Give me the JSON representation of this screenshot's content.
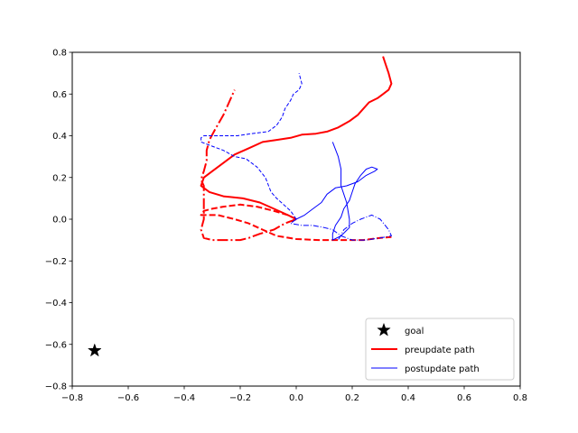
{
  "chart_data": {
    "type": "line",
    "title": "",
    "xlabel": "",
    "ylabel": "",
    "xlim": [
      -0.8,
      0.8
    ],
    "ylim": [
      -0.8,
      0.8
    ],
    "xticks": [
      -0.8,
      -0.6,
      -0.4,
      -0.2,
      0.0,
      0.2,
      0.4,
      0.6,
      0.8
    ],
    "yticks": [
      -0.8,
      -0.6,
      -0.4,
      -0.2,
      0.0,
      0.2,
      0.4,
      0.6,
      0.8
    ],
    "xtick_labels": [
      "−0.8",
      "−0.6",
      "−0.4",
      "−0.2",
      "0.0",
      "0.2",
      "0.4",
      "0.6",
      "0.8"
    ],
    "ytick_labels": [
      "−0.8",
      "−0.6",
      "−0.4",
      "−0.2",
      "0.0",
      "0.2",
      "0.4",
      "0.6",
      "0.8"
    ],
    "grid": false,
    "legend_position": "lower-right",
    "goal": {
      "label": "goal",
      "x": -0.72,
      "y": -0.63,
      "color": "#000000",
      "marker": "star"
    },
    "legend": [
      {
        "label": "goal",
        "kind": "star",
        "color": "#000000"
      },
      {
        "label": "preupdate path",
        "kind": "line",
        "color": "#ff0000",
        "width": 2
      },
      {
        "label": "postupdate path",
        "kind": "line",
        "color": "#0000ff",
        "width": 1
      }
    ],
    "series": [
      {
        "group": "preupdate",
        "style": "solid",
        "color": "#ff0000",
        "width": 2,
        "points": [
          [
            0.0,
            0.0
          ],
          [
            -0.03,
            0.02
          ],
          [
            -0.08,
            0.05
          ],
          [
            -0.13,
            0.08
          ],
          [
            -0.19,
            0.1
          ],
          [
            -0.26,
            0.11
          ],
          [
            -0.31,
            0.13
          ],
          [
            -0.34,
            0.16
          ],
          [
            -0.33,
            0.2
          ],
          [
            -0.3,
            0.23
          ],
          [
            -0.26,
            0.27
          ],
          [
            -0.22,
            0.31
          ],
          [
            -0.17,
            0.34
          ],
          [
            -0.12,
            0.37
          ],
          [
            -0.07,
            0.38
          ],
          [
            -0.02,
            0.39
          ],
          [
            0.02,
            0.405
          ],
          [
            0.07,
            0.41
          ],
          [
            0.11,
            0.42
          ],
          [
            0.15,
            0.44
          ],
          [
            0.19,
            0.47
          ],
          [
            0.22,
            0.5
          ],
          [
            0.24,
            0.53
          ],
          [
            0.26,
            0.56
          ],
          [
            0.29,
            0.58
          ],
          [
            0.31,
            0.6
          ],
          [
            0.33,
            0.62
          ],
          [
            0.34,
            0.65
          ],
          [
            0.33,
            0.7
          ],
          [
            0.32,
            0.74
          ],
          [
            0.31,
            0.78
          ]
        ]
      },
      {
        "group": "preupdate",
        "style": "dashed",
        "color": "#ff0000",
        "width": 2,
        "points": [
          [
            0.0,
            0.0
          ],
          [
            -0.03,
            0.02
          ],
          [
            -0.08,
            0.04
          ],
          [
            -0.14,
            0.06
          ],
          [
            -0.2,
            0.07
          ],
          [
            -0.26,
            0.06
          ],
          [
            -0.3,
            0.05
          ],
          [
            -0.33,
            0.04
          ],
          [
            -0.34,
            0.02
          ],
          [
            -0.32,
            0.02
          ],
          [
            -0.28,
            0.02
          ],
          [
            -0.22,
            0.0
          ],
          [
            -0.17,
            -0.02
          ],
          [
            -0.12,
            -0.05
          ],
          [
            -0.07,
            -0.08
          ],
          [
            0.0,
            -0.095
          ],
          [
            0.08,
            -0.1
          ],
          [
            0.16,
            -0.1
          ],
          [
            0.24,
            -0.1
          ],
          [
            0.3,
            -0.09
          ],
          [
            0.34,
            -0.085
          ]
        ]
      },
      {
        "group": "preupdate",
        "style": "dashdot",
        "color": "#ff0000",
        "width": 2,
        "points": [
          [
            0.0,
            0.0
          ],
          [
            -0.04,
            -0.02
          ],
          [
            -0.08,
            -0.05
          ],
          [
            -0.13,
            -0.07
          ],
          [
            -0.17,
            -0.09
          ],
          [
            -0.2,
            -0.1
          ],
          [
            -0.26,
            -0.1
          ],
          [
            -0.3,
            -0.1
          ],
          [
            -0.33,
            -0.09
          ],
          [
            -0.34,
            -0.05
          ],
          [
            -0.33,
            0.0
          ],
          [
            -0.33,
            0.05
          ],
          [
            -0.33,
            0.1
          ],
          [
            -0.33,
            0.16
          ],
          [
            -0.34,
            0.19
          ],
          [
            -0.33,
            0.23
          ],
          [
            -0.32,
            0.28
          ],
          [
            -0.32,
            0.33
          ],
          [
            -0.31,
            0.38
          ],
          [
            -0.29,
            0.43
          ],
          [
            -0.26,
            0.5
          ],
          [
            -0.24,
            0.56
          ],
          [
            -0.22,
            0.62
          ]
        ]
      },
      {
        "group": "postupdate",
        "style": "solid",
        "color": "#0000ff",
        "width": 1,
        "points": [
          [
            0.0,
            0.0
          ],
          [
            0.03,
            0.02
          ],
          [
            0.06,
            0.05
          ],
          [
            0.09,
            0.08
          ],
          [
            0.11,
            0.12
          ],
          [
            0.14,
            0.15
          ],
          [
            0.18,
            0.16
          ],
          [
            0.22,
            0.18
          ],
          [
            0.25,
            0.21
          ],
          [
            0.28,
            0.23
          ],
          [
            0.29,
            0.24
          ],
          [
            0.27,
            0.25
          ],
          [
            0.25,
            0.24
          ],
          [
            0.23,
            0.21
          ],
          [
            0.21,
            0.17
          ],
          [
            0.2,
            0.13
          ],
          [
            0.19,
            0.09
          ],
          [
            0.17,
            0.05
          ],
          [
            0.16,
            0.01
          ],
          [
            0.14,
            -0.03
          ],
          [
            0.13,
            -0.07
          ],
          [
            0.13,
            -0.1
          ],
          [
            0.16,
            -0.08
          ],
          [
            0.19,
            -0.04
          ],
          [
            0.19,
            0.0
          ],
          [
            0.18,
            0.08
          ],
          [
            0.16,
            0.16
          ],
          [
            0.16,
            0.2
          ],
          [
            0.16,
            0.24
          ],
          [
            0.15,
            0.3
          ],
          [
            0.13,
            0.37
          ]
        ]
      },
      {
        "group": "postupdate",
        "style": "dashed",
        "color": "#0000ff",
        "width": 1,
        "points": [
          [
            0.0,
            0.0
          ],
          [
            -0.02,
            0.04
          ],
          [
            -0.07,
            0.1
          ],
          [
            -0.09,
            0.13
          ],
          [
            -0.11,
            0.2
          ],
          [
            -0.14,
            0.25
          ],
          [
            -0.18,
            0.29
          ],
          [
            -0.22,
            0.3
          ],
          [
            -0.26,
            0.33
          ],
          [
            -0.3,
            0.35
          ],
          [
            -0.34,
            0.37
          ],
          [
            -0.34,
            0.39
          ],
          [
            -0.33,
            0.4
          ],
          [
            -0.28,
            0.4
          ],
          [
            -0.21,
            0.4
          ],
          [
            -0.16,
            0.41
          ],
          [
            -0.1,
            0.42
          ],
          [
            -0.07,
            0.45
          ],
          [
            -0.05,
            0.49
          ],
          [
            -0.04,
            0.53
          ],
          [
            -0.02,
            0.57
          ],
          [
            -0.01,
            0.6
          ],
          [
            0.01,
            0.62
          ],
          [
            0.02,
            0.65
          ],
          [
            0.01,
            0.7
          ]
        ]
      },
      {
        "group": "postupdate",
        "style": "dashdot",
        "color": "#0000ff",
        "width": 1,
        "points": [
          [
            0.0,
            0.0
          ],
          [
            -0.02,
            -0.02
          ],
          [
            0.02,
            -0.03
          ],
          [
            0.06,
            -0.03
          ],
          [
            0.1,
            -0.04
          ],
          [
            0.13,
            -0.05
          ],
          [
            0.16,
            -0.08
          ],
          [
            0.2,
            -0.1
          ],
          [
            0.25,
            -0.1
          ],
          [
            0.3,
            -0.09
          ],
          [
            0.34,
            -0.08
          ],
          [
            0.33,
            -0.05
          ],
          [
            0.3,
            0.0
          ],
          [
            0.27,
            0.02
          ],
          [
            0.23,
            0.0
          ],
          [
            0.2,
            -0.02
          ],
          [
            0.17,
            -0.05
          ],
          [
            0.15,
            -0.1
          ]
        ]
      }
    ]
  }
}
